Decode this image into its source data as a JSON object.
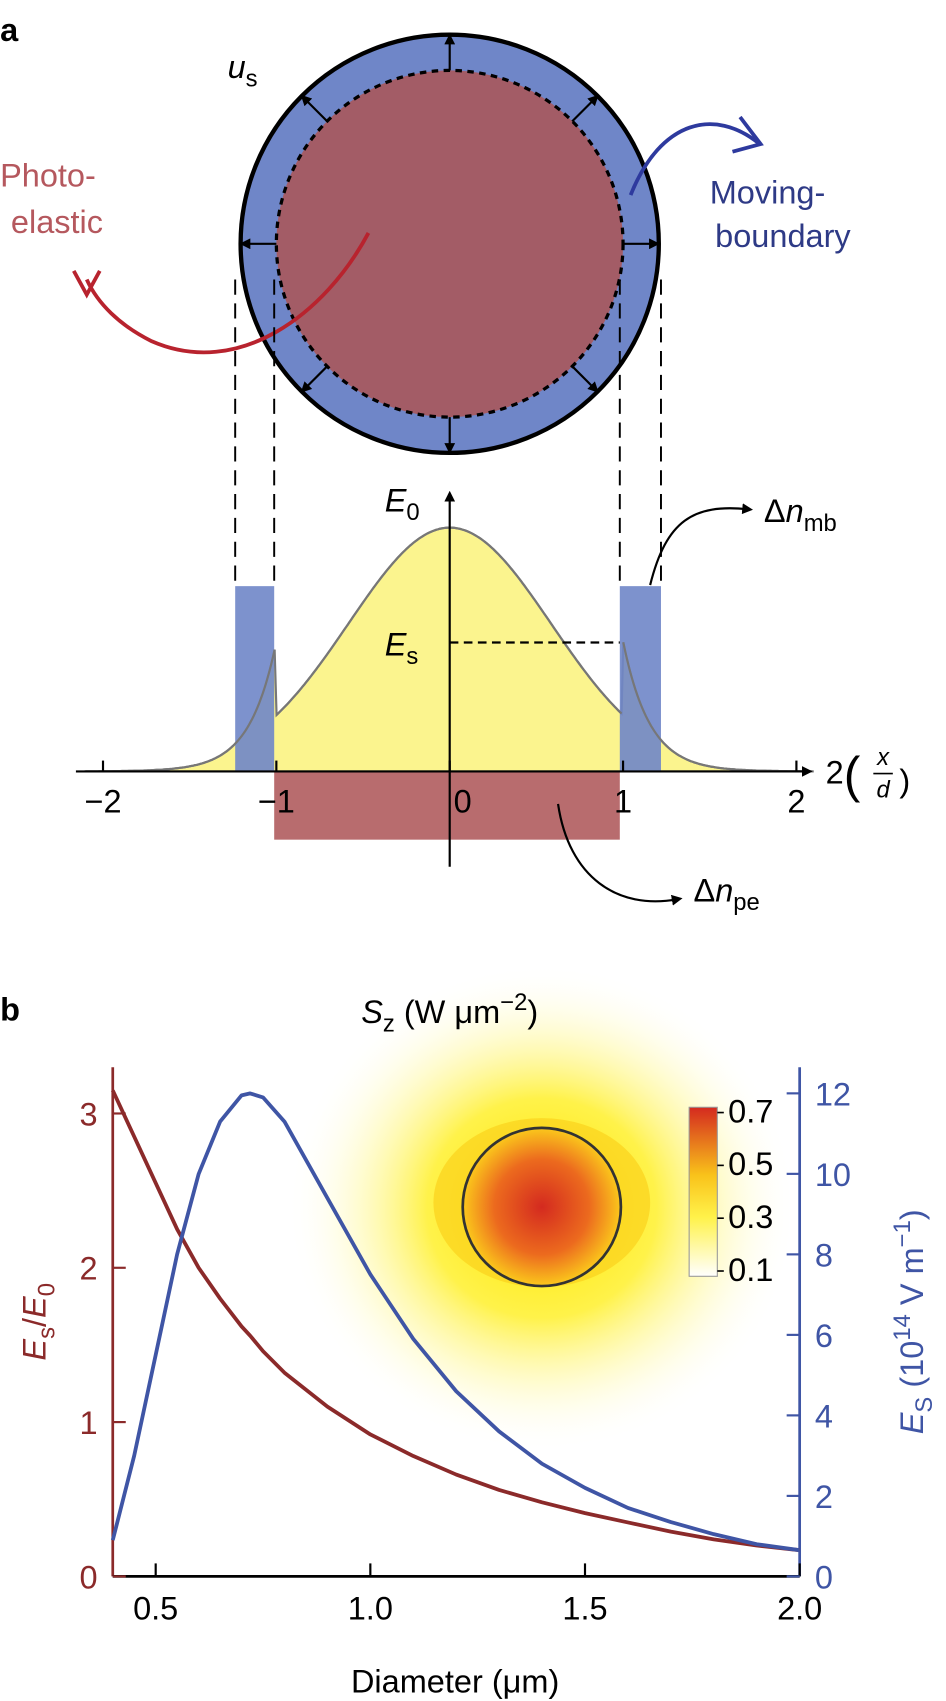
{
  "panel_a": {
    "label": "a",
    "u": [
      "u",
      "s"
    ],
    "photo": [
      "Photo-",
      "elastic"
    ],
    "moving": [
      "Moving-",
      "boundary"
    ],
    "E0": [
      "E",
      "0"
    ],
    "Es": [
      "E",
      "s"
    ],
    "dn_mb": [
      "Δ",
      "n",
      "mb"
    ],
    "dn_pe": [
      "Δ",
      "n",
      "pe"
    ],
    "axis_label": [
      "2",
      "(",
      "x",
      "d",
      ")"
    ],
    "ticks": [
      "−2",
      "−1",
      "0",
      "1",
      "2"
    ]
  },
  "chart_data": {
    "type": "line",
    "label": "b",
    "colorbar_title": [
      "S",
      "z",
      " (W μm",
      "−2",
      ")"
    ],
    "colorbar_ticks": [
      0.1,
      0.3,
      0.5,
      0.7
    ],
    "colorbar_lim": [
      0.08,
      0.72
    ],
    "xlabel": "Diameter (μm)",
    "ylabel": [
      "E",
      "s",
      "/",
      "E",
      "0"
    ],
    "y2label": [
      "E",
      "S",
      " (10",
      "14",
      " V m",
      "−1",
      ")"
    ],
    "x": [
      0.4,
      0.45,
      0.5,
      0.55,
      0.6,
      0.65,
      0.7,
      0.72,
      0.75,
      0.8,
      0.9,
      1.0,
      1.1,
      1.2,
      1.3,
      1.4,
      1.5,
      1.6,
      1.7,
      1.8,
      1.9,
      2.0
    ],
    "series": [
      {
        "color": "#8b2a2a",
        "values": [
          3.15,
          2.85,
          2.55,
          2.25,
          2.0,
          1.8,
          1.62,
          1.56,
          1.46,
          1.32,
          1.1,
          0.92,
          0.78,
          0.66,
          0.56,
          0.48,
          0.41,
          0.35,
          0.29,
          0.24,
          0.2,
          0.17
        ]
      },
      {
        "color": "#3f55a5",
        "axis": "y2",
        "values": [
          0.9,
          3,
          5.5,
          8,
          10,
          11.3,
          11.95,
          12,
          11.9,
          11.3,
          9.4,
          7.5,
          5.9,
          4.6,
          3.6,
          2.8,
          2.2,
          1.7,
          1.35,
          1.05,
          0.8,
          0.65
        ]
      }
    ],
    "xlim": [
      0.4,
      2.0
    ],
    "xticks": [
      0.5,
      {
        "value": 1,
        "label": "1.0"
      },
      1.5,
      {
        "value": 2,
        "label": "2.0"
      }
    ],
    "ylim": [
      0,
      3.3
    ],
    "yticks": [
      0,
      1,
      2,
      3
    ],
    "y2lim": [
      0,
      12.65
    ],
    "y2ticks": [
      0,
      2,
      4,
      6,
      8,
      10,
      12
    ]
  }
}
